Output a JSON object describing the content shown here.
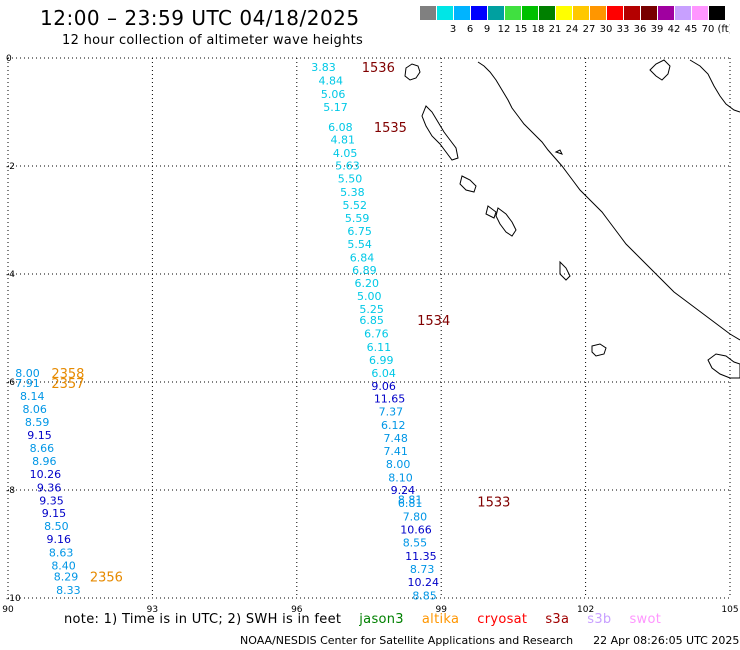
{
  "header": {
    "title": "12:00 – 23:59 UTC 04/18/2025",
    "subtitle": "12 hour collection of altimeter wave heights"
  },
  "legend": {
    "bins": [
      {
        "label": "",
        "color": "#808080"
      },
      {
        "label": "3",
        "color": "#00e6e6"
      },
      {
        "label": "6",
        "color": "#00b4ff"
      },
      {
        "label": "9",
        "color": "#0000ff"
      },
      {
        "label": "12",
        "color": "#00a0a0"
      },
      {
        "label": "15",
        "color": "#40e040"
      },
      {
        "label": "18",
        "color": "#00c000"
      },
      {
        "label": "21",
        "color": "#008000"
      },
      {
        "label": "24",
        "color": "#ffff00"
      },
      {
        "label": "27",
        "color": "#ffc800"
      },
      {
        "label": "30",
        "color": "#ff9600"
      },
      {
        "label": "33",
        "color": "#ff0000"
      },
      {
        "label": "36",
        "color": "#b40000"
      },
      {
        "label": "39",
        "color": "#780000"
      },
      {
        "label": "42",
        "color": "#a000a0"
      },
      {
        "label": "45",
        "color": "#c8a0ff"
      },
      {
        "label": "70",
        "color": "#ff96ff"
      },
      {
        "label": "(ft)",
        "color": "#000000"
      }
    ]
  },
  "axes": {
    "x_ticks": [
      "90",
      "93",
      "96",
      "99",
      "102",
      "105"
    ],
    "y_ticks": [
      "0",
      "-2",
      "-4",
      "-6",
      "-8",
      "-10"
    ],
    "x_range": [
      90,
      105
    ],
    "y_range": [
      0,
      -10
    ]
  },
  "colors": {
    "light": "#00c8e6",
    "mid": "#0096e6",
    "dark": "#0000c8",
    "time_jason": "#800000",
    "time_altika": "#e68a00"
  },
  "tracks": [
    {
      "time": "1536",
      "time_color": "time_jason",
      "time_pos": {
        "lon": 97.35,
        "lat": -0.17
      },
      "labels": [
        {
          "v": "3.83",
          "c": "light",
          "lon": 96.3,
          "lat": -0.17
        },
        {
          "v": "4.84",
          "c": "light",
          "lon": 96.45,
          "lat": -0.42
        },
        {
          "v": "5.06",
          "c": "light",
          "lon": 96.5,
          "lat": -0.67
        },
        {
          "v": "5.17",
          "c": "light",
          "lon": 96.55,
          "lat": -0.91
        }
      ]
    },
    {
      "time": "1535",
      "time_color": "time_jason",
      "time_pos": {
        "lon": 97.6,
        "lat": -1.28
      },
      "labels": [
        {
          "v": "6.08",
          "c": "light",
          "lon": 96.65,
          "lat": -1.28
        },
        {
          "v": "4.81",
          "c": "light",
          "lon": 96.7,
          "lat": -1.51
        },
        {
          "v": "4.05",
          "c": "light",
          "lon": 96.75,
          "lat": -1.76
        },
        {
          "v": "5.63",
          "c": "light",
          "lon": 96.8,
          "lat": -1.99
        },
        {
          "v": "5.50",
          "c": "light",
          "lon": 96.85,
          "lat": -2.23
        },
        {
          "v": "5.38",
          "c": "light",
          "lon": 96.9,
          "lat": -2.48
        },
        {
          "v": "5.52",
          "c": "light",
          "lon": 96.95,
          "lat": -2.72
        },
        {
          "v": "5.59",
          "c": "light",
          "lon": 97.0,
          "lat": -2.96
        },
        {
          "v": "6.75",
          "c": "light",
          "lon": 97.05,
          "lat": -3.2
        },
        {
          "v": "5.54",
          "c": "light",
          "lon": 97.05,
          "lat": -3.44
        },
        {
          "v": "6.84",
          "c": "light",
          "lon": 97.1,
          "lat": -3.69
        },
        {
          "v": "6.89",
          "c": "light",
          "lon": 97.15,
          "lat": -3.93
        },
        {
          "v": "6.20",
          "c": "light",
          "lon": 97.2,
          "lat": -4.17
        },
        {
          "v": "5.00",
          "c": "light",
          "lon": 97.25,
          "lat": -4.41
        },
        {
          "v": "5.25",
          "c": "light",
          "lon": 97.3,
          "lat": -4.65
        }
      ]
    },
    {
      "time": "1534",
      "time_color": "time_jason",
      "time_pos": {
        "lon": 98.5,
        "lat": -4.85
      },
      "labels": [
        {
          "v": "6.85",
          "c": "light",
          "lon": 97.3,
          "lat": -4.85
        },
        {
          "v": "6.76",
          "c": "light",
          "lon": 97.4,
          "lat": -5.1
        },
        {
          "v": "6.11",
          "c": "light",
          "lon": 97.45,
          "lat": -5.35
        },
        {
          "v": "6.99",
          "c": "light",
          "lon": 97.5,
          "lat": -5.59
        },
        {
          "v": "6.04",
          "c": "light",
          "lon": 97.55,
          "lat": -5.83
        },
        {
          "v": "9.06",
          "c": "dark",
          "lon": 97.55,
          "lat": -6.07
        },
        {
          "v": "11.65",
          "c": "dark",
          "lon": 97.6,
          "lat": -6.31
        },
        {
          "v": "7.37",
          "c": "mid",
          "lon": 97.7,
          "lat": -6.55
        },
        {
          "v": "6.12",
          "c": "mid",
          "lon": 97.75,
          "lat": -6.8
        },
        {
          "v": "7.48",
          "c": "mid",
          "lon": 97.8,
          "lat": -7.04
        },
        {
          "v": "7.41",
          "c": "mid",
          "lon": 97.8,
          "lat": -7.28
        },
        {
          "v": "8.00",
          "c": "mid",
          "lon": 97.85,
          "lat": -7.52
        },
        {
          "v": "8.10",
          "c": "mid",
          "lon": 97.9,
          "lat": -7.77
        },
        {
          "v": "9.24",
          "c": "dark",
          "lon": 97.95,
          "lat": -8.0
        }
      ]
    },
    {
      "time": "1533",
      "time_color": "time_jason",
      "time_pos": {
        "lon": 99.75,
        "lat": -8.21
      },
      "labels": [
        {
          "v": "8.81",
          "c": "mid",
          "lon": 98.1,
          "lat": -8.18
        },
        {
          "v": "6.81",
          "c": "mid",
          "lon": 98.1,
          "lat": -8.24
        },
        {
          "v": "7.80",
          "c": "mid",
          "lon": 98.2,
          "lat": -8.49
        },
        {
          "v": "10.66",
          "c": "dark",
          "lon": 98.15,
          "lat": -8.73
        },
        {
          "v": "8.55",
          "c": "mid",
          "lon": 98.2,
          "lat": -8.97
        },
        {
          "v": "11.35",
          "c": "dark",
          "lon": 98.25,
          "lat": -9.22
        },
        {
          "v": "8.73",
          "c": "mid",
          "lon": 98.35,
          "lat": -9.46
        },
        {
          "v": "10.24",
          "c": "dark",
          "lon": 98.3,
          "lat": -9.7
        },
        {
          "v": "8.85",
          "c": "mid",
          "lon": 98.4,
          "lat": -9.95
        }
      ]
    },
    {
      "time": "2358",
      "time_color": "time_altika",
      "time_pos": {
        "lon": 90.9,
        "lat": -5.83
      },
      "labels": [
        {
          "v": "8.00",
          "c": "mid",
          "lon": 90.15,
          "lat": -5.83
        }
      ]
    },
    {
      "time": "2357",
      "time_color": "time_altika",
      "time_pos": {
        "lon": 90.9,
        "lat": -6.02
      },
      "labels": [
        {
          "v": "7.91",
          "c": "mid",
          "lon": 90.15,
          "lat": -6.02
        },
        {
          "v": "8.14",
          "c": "mid",
          "lon": 90.25,
          "lat": -6.26
        },
        {
          "v": "8.06",
          "c": "mid",
          "lon": 90.3,
          "lat": -6.5
        },
        {
          "v": "8.59",
          "c": "mid",
          "lon": 90.35,
          "lat": -6.74
        },
        {
          "v": "9.15",
          "c": "dark",
          "lon": 90.4,
          "lat": -6.98
        },
        {
          "v": "8.66",
          "c": "mid",
          "lon": 90.45,
          "lat": -7.22
        },
        {
          "v": "8.96",
          "c": "mid",
          "lon": 90.5,
          "lat": -7.46
        },
        {
          "v": "10.26",
          "c": "dark",
          "lon": 90.45,
          "lat": -7.7
        },
        {
          "v": "9.36",
          "c": "dark",
          "lon": 90.6,
          "lat": -7.95
        },
        {
          "v": "9.35",
          "c": "dark",
          "lon": 90.65,
          "lat": -8.19
        },
        {
          "v": "9.15",
          "c": "dark",
          "lon": 90.7,
          "lat": -8.43
        },
        {
          "v": "8.50",
          "c": "mid",
          "lon": 90.75,
          "lat": -8.67
        },
        {
          "v": "9.16",
          "c": "dark",
          "lon": 90.8,
          "lat": -8.91
        },
        {
          "v": "8.63",
          "c": "mid",
          "lon": 90.85,
          "lat": -9.16
        },
        {
          "v": "8.40",
          "c": "mid",
          "lon": 90.9,
          "lat": -9.4
        }
      ]
    },
    {
      "time": "2356",
      "time_color": "time_altika",
      "time_pos": {
        "lon": 91.7,
        "lat": -9.6
      },
      "labels": [
        {
          "v": "8.29",
          "c": "mid",
          "lon": 90.95,
          "lat": -9.6
        },
        {
          "v": "8.33",
          "c": "mid",
          "lon": 91.0,
          "lat": -9.85
        }
      ]
    }
  ],
  "footer": {
    "note_prefix": "note:  1) Time is in UTC;  2) SWH is in feet",
    "satellites": [
      {
        "name": "jason3",
        "color": "#008000"
      },
      {
        "name": "altika",
        "color": "#ff9600"
      },
      {
        "name": "cryosat",
        "color": "#ff0000"
      },
      {
        "name": "s3a",
        "color": "#a00000"
      },
      {
        "name": "s3b",
        "color": "#c8a0ff"
      },
      {
        "name": "swot",
        "color": "#ff96ff"
      }
    ],
    "credit": "NOAA/NESDIS Center for Satellite Applications and Research",
    "timestamp": "22 Apr 08:26:05 UTC 2025"
  }
}
